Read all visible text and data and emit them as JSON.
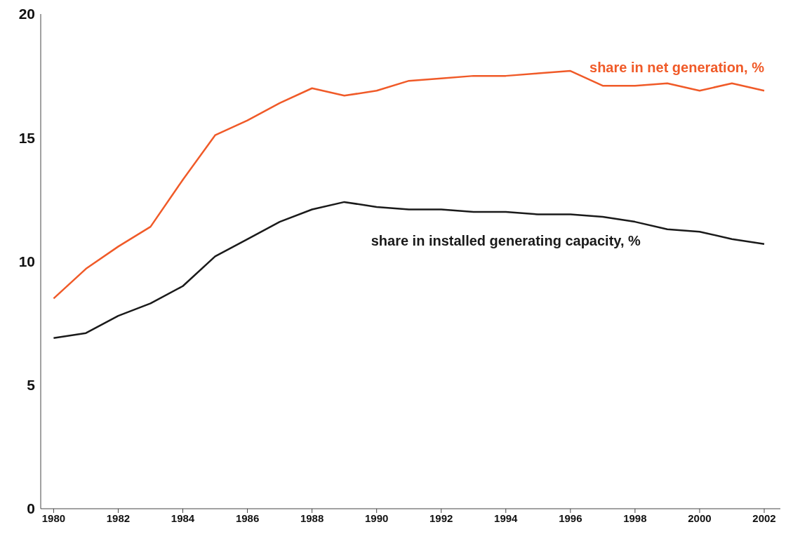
{
  "chart_data": {
    "type": "line",
    "x": [
      1980,
      1981,
      1982,
      1983,
      1984,
      1985,
      1986,
      1987,
      1988,
      1989,
      1990,
      1991,
      1992,
      1993,
      1994,
      1995,
      1996,
      1997,
      1998,
      1999,
      2000,
      2001,
      2002
    ],
    "series": [
      {
        "name": "share in net generation, %",
        "color": "#f05a28",
        "values": [
          8.5,
          9.7,
          10.6,
          11.4,
          13.3,
          15.1,
          15.7,
          16.4,
          17.0,
          16.7,
          16.9,
          17.3,
          17.4,
          17.5,
          17.5,
          17.6,
          17.7,
          17.1,
          17.1,
          17.2,
          16.9,
          17.2,
          16.9
        ]
      },
      {
        "name": "share in installed generating capacity, %",
        "color": "#1a1a1a",
        "values": [
          6.9,
          7.1,
          7.8,
          8.3,
          9.0,
          10.2,
          10.9,
          11.6,
          12.1,
          12.4,
          12.2,
          12.1,
          12.1,
          12.0,
          12.0,
          11.9,
          11.9,
          11.8,
          11.6,
          11.3,
          11.2,
          10.9,
          10.7
        ]
      }
    ],
    "xlim": [
      1979.6,
      2002.5
    ],
    "xticks": [
      1980,
      1982,
      1984,
      1986,
      1988,
      1990,
      1992,
      1994,
      1996,
      1998,
      2000,
      2002
    ],
    "ylim": [
      0,
      20
    ],
    "yticks": [
      0,
      5,
      10,
      15,
      20
    ],
    "grid": false,
    "legend": false,
    "marker": "none",
    "line_style": "solid"
  }
}
